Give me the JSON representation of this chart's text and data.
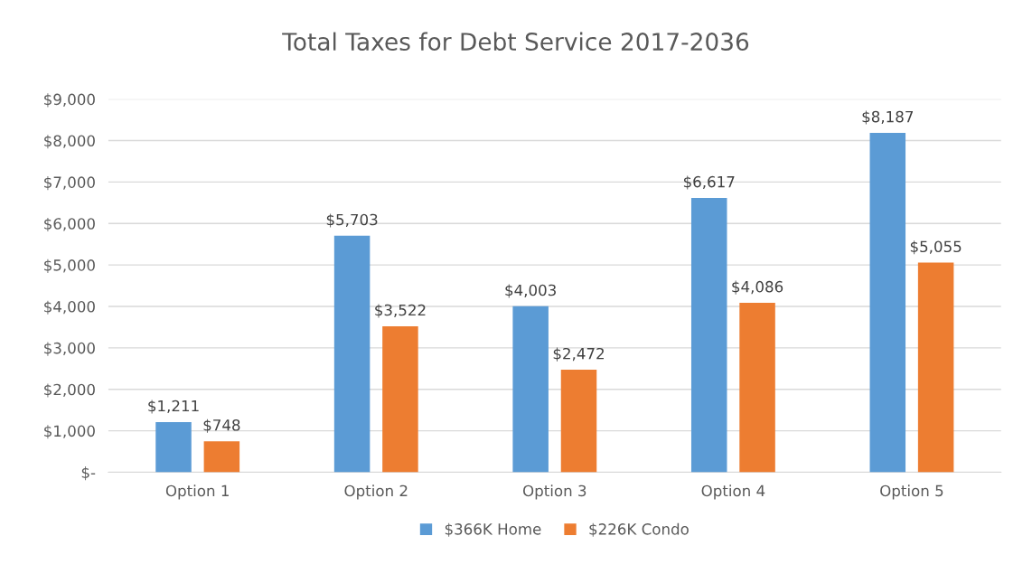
{
  "chart_data": {
    "type": "bar",
    "title": "Total Taxes for Debt Service 2017-2036",
    "categories": [
      "Option 1",
      "Option 2",
      "Option 3",
      "Option 4",
      "Option 5"
    ],
    "series": [
      {
        "name": "$366K Home",
        "color": "#5b9bd5",
        "values": [
          1211,
          5703,
          4003,
          6617,
          8187
        ],
        "value_labels": [
          "$1,211",
          "$5,703",
          "$4,003",
          "$6,617",
          "$8,187"
        ]
      },
      {
        "name": "$226K Condo",
        "color": "#ed7d31",
        "values": [
          748,
          3522,
          2472,
          4086,
          5055
        ],
        "value_labels": [
          "$748",
          "$3,522",
          "$2,472",
          "$4,086",
          "$5,055"
        ]
      }
    ],
    "ylim": [
      0,
      9000
    ],
    "yticks": [
      {
        "value": 0,
        "label": "$-"
      },
      {
        "value": 1000,
        "label": "$1,000"
      },
      {
        "value": 2000,
        "label": "$2,000"
      },
      {
        "value": 3000,
        "label": "$3,000"
      },
      {
        "value": 4000,
        "label": "$4,000"
      },
      {
        "value": 5000,
        "label": "$5,000"
      },
      {
        "value": 6000,
        "label": "$6,000"
      },
      {
        "value": 7000,
        "label": "$7,000"
      },
      {
        "value": 8000,
        "label": "$8,000"
      },
      {
        "value": 9000,
        "label": "$9,000"
      }
    ],
    "grid": "y",
    "legend": "bottom"
  }
}
